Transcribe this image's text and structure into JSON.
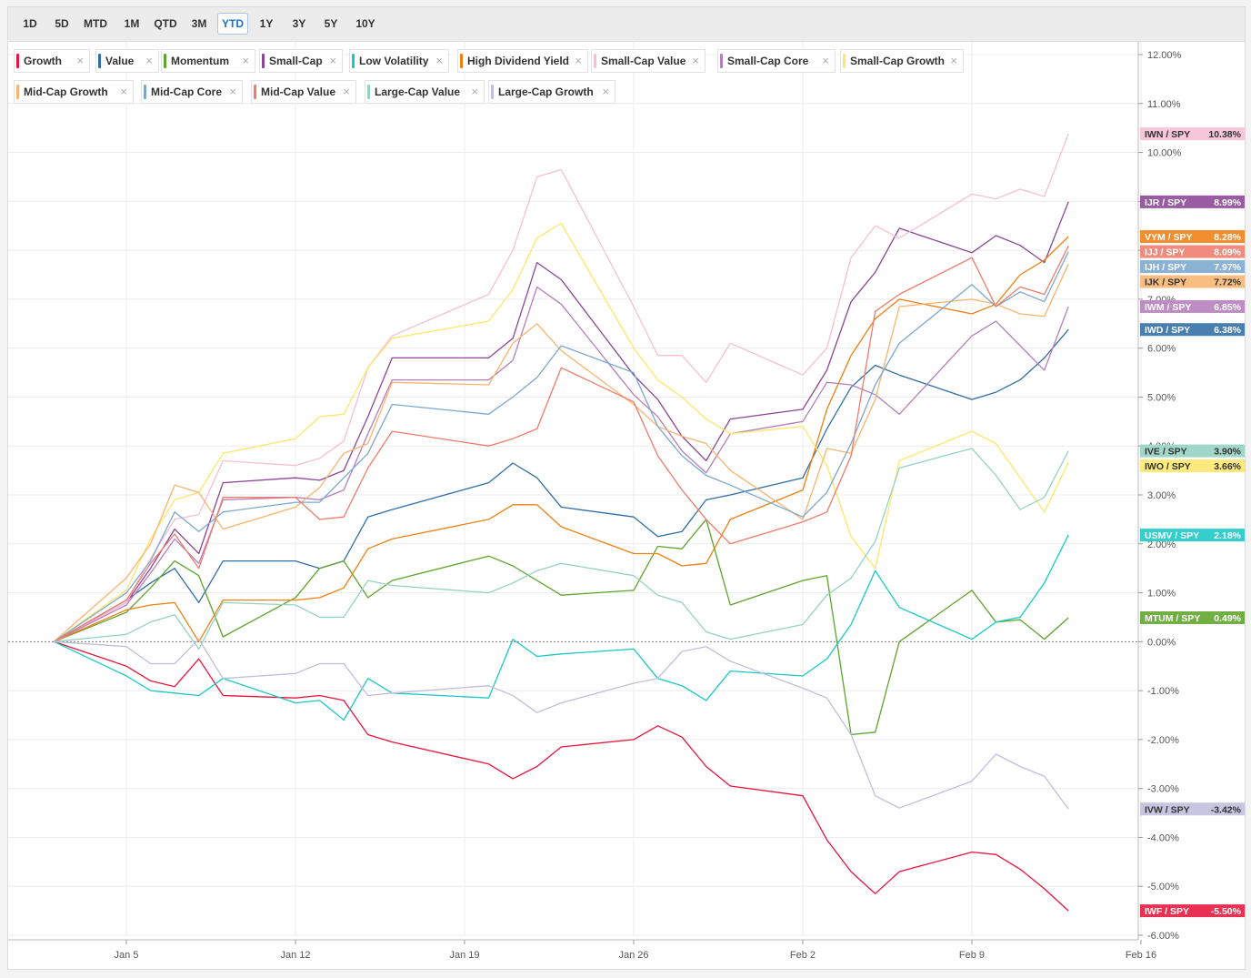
{
  "toolbar": {
    "ranges": [
      "1D",
      "5D",
      "MTD",
      "1M",
      "QTD",
      "3M",
      "YTD",
      "1Y",
      "3Y",
      "5Y",
      "10Y"
    ],
    "active": "YTD"
  },
  "chart_data": {
    "type": "line",
    "title": "",
    "xlabel": "",
    "ylabel": "",
    "x": [
      "Jan 2",
      "Jan 5",
      "Jan 6",
      "Jan 7",
      "Jan 8",
      "Jan 9",
      "Jan 12",
      "Jan 13",
      "Jan 14",
      "Jan 15",
      "Jan 16",
      "Jan 20",
      "Jan 21",
      "Jan 22",
      "Jan 23",
      "Jan 26",
      "Jan 27",
      "Jan 28",
      "Jan 29",
      "Jan 30",
      "Feb 2",
      "Feb 3",
      "Feb 4",
      "Feb 5",
      "Feb 6",
      "Feb 9",
      "Feb 10",
      "Feb 11",
      "Feb 12",
      "Feb 13"
    ],
    "x_ticks": [
      "Jan 5",
      "Jan 12",
      "Jan 19",
      "Jan 26",
      "Feb 2",
      "Feb 9",
      "Feb 16"
    ],
    "ylim": [
      -6.0,
      12.0
    ],
    "y_ticks": [
      "12.00%",
      "11.00%",
      "10.00%",
      "9.00%",
      "8.00%",
      "7.00%",
      "6.00%",
      "5.00%",
      "4.00%",
      "3.00%",
      "2.00%",
      "1.00%",
      "0.00%",
      "-1.00%",
      "-2.00%",
      "-3.00%",
      "-4.00%",
      "-5.00%",
      "-6.00%"
    ],
    "grid": true,
    "legend_position": "top-left",
    "series": [
      {
        "name": "Growth",
        "ticker": "IWF / SPY",
        "final": "-5.50%",
        "color": "#e8143c",
        "values": [
          0,
          -0.5,
          -0.8,
          -0.92,
          -0.35,
          -1.1,
          -1.15,
          -1.1,
          -1.2,
          -1.9,
          -2.05,
          -2.5,
          -2.8,
          -2.55,
          -2.15,
          -2.0,
          -1.72,
          -1.95,
          -2.55,
          -2.95,
          -3.15,
          -4.05,
          -4.7,
          -5.15,
          -4.7,
          -4.3,
          -4.35,
          -4.65,
          -5.05,
          -5.5
        ]
      },
      {
        "name": "Value",
        "ticker": "IWD / SPY",
        "final": "6.38%",
        "color": "#2f6ea5",
        "values": [
          0,
          0.85,
          1.2,
          1.5,
          0.8,
          1.65,
          1.65,
          1.5,
          1.65,
          2.55,
          2.7,
          3.25,
          3.65,
          3.35,
          2.75,
          2.55,
          2.15,
          2.25,
          2.9,
          3.0,
          3.35,
          4.35,
          5.2,
          5.65,
          5.45,
          4.95,
          5.1,
          5.35,
          5.8,
          6.38
        ]
      },
      {
        "name": "Momentum",
        "ticker": "MTUM / SPY",
        "final": "0.49%",
        "color": "#5ea42c",
        "values": [
          0,
          0.6,
          1.1,
          1.65,
          1.35,
          0.1,
          0.9,
          1.5,
          1.65,
          0.9,
          1.25,
          1.75,
          1.55,
          1.25,
          0.95,
          1.05,
          1.95,
          1.9,
          2.5,
          0.75,
          1.25,
          1.35,
          -1.9,
          -1.85,
          0.0,
          1.05,
          0.4,
          0.45,
          0.05,
          0.49
        ]
      },
      {
        "name": "Small-Cap",
        "ticker": "IJR / SPY",
        "final": "8.99%",
        "color": "#8b4596",
        "values": [
          0,
          0.8,
          1.5,
          2.3,
          1.8,
          3.25,
          3.35,
          3.3,
          3.5,
          4.6,
          5.8,
          5.8,
          6.2,
          7.75,
          7.4,
          5.45,
          4.95,
          4.2,
          3.7,
          4.55,
          4.75,
          5.55,
          6.95,
          7.55,
          8.45,
          7.95,
          8.3,
          8.1,
          7.75,
          8.99
        ]
      },
      {
        "name": "Low Volatility",
        "ticker": "USMV / SPY",
        "final": "2.18%",
        "color": "#19c9c6",
        "values": [
          0,
          -0.7,
          -1.0,
          -1.05,
          -1.1,
          -0.75,
          -1.25,
          -1.2,
          -1.6,
          -0.75,
          -1.05,
          -1.15,
          0.05,
          -0.3,
          -0.25,
          -0.15,
          -0.75,
          -0.9,
          -1.2,
          -0.6,
          -0.7,
          -0.35,
          0.35,
          1.45,
          0.7,
          0.05,
          0.4,
          0.5,
          1.2,
          2.18
        ]
      },
      {
        "name": "High Dividend Yield",
        "ticker": "VYM / SPY",
        "final": "8.28%",
        "color": "#ef8012",
        "values": [
          0,
          0.65,
          0.75,
          0.8,
          0.0,
          0.85,
          0.85,
          0.9,
          1.1,
          1.9,
          2.1,
          2.5,
          2.8,
          2.8,
          2.35,
          1.8,
          1.8,
          1.55,
          1.6,
          2.5,
          3.1,
          4.75,
          5.85,
          6.6,
          7.0,
          6.7,
          6.9,
          7.5,
          7.8,
          8.28
        ]
      },
      {
        "name": "Small-Cap Value",
        "ticker": "IWN / SPY",
        "final": "10.38%",
        "color": "#f7bfd4",
        "values": [
          0,
          0.8,
          1.7,
          2.5,
          2.6,
          3.7,
          3.6,
          3.75,
          4.1,
          5.6,
          6.25,
          7.1,
          8.0,
          9.5,
          9.65,
          6.85,
          5.85,
          5.85,
          5.3,
          6.1,
          5.45,
          6.0,
          7.85,
          8.5,
          8.25,
          9.15,
          9.05,
          9.25,
          9.1,
          10.38
        ]
      },
      {
        "name": "Small-Cap Core",
        "ticker": "IWM / SPY",
        "final": "6.85%",
        "color": "#b67ebb",
        "values": [
          0,
          0.75,
          1.4,
          2.1,
          1.6,
          2.9,
          2.95,
          2.9,
          3.1,
          4.25,
          5.35,
          5.35,
          5.75,
          7.25,
          6.9,
          5.05,
          4.6,
          3.9,
          3.45,
          4.25,
          4.5,
          5.3,
          5.25,
          5.05,
          4.65,
          6.25,
          6.55,
          6.05,
          5.55,
          6.85
        ]
      },
      {
        "name": "Small-Cap Growth",
        "ticker": "IWO / SPY",
        "final": "3.66%",
        "color": "#fde66a",
        "values": [
          0,
          1.05,
          2.1,
          2.9,
          3.05,
          3.85,
          4.15,
          4.6,
          4.65,
          5.6,
          6.2,
          6.55,
          7.2,
          8.25,
          8.55,
          6.0,
          5.35,
          5.0,
          4.55,
          4.25,
          4.4,
          3.6,
          2.15,
          1.5,
          3.7,
          4.3,
          4.05,
          3.35,
          2.65,
          3.66
        ]
      },
      {
        "name": "Mid-Cap Growth",
        "ticker": "IJK / SPY",
        "final": "7.72%",
        "color": "#f8b470",
        "values": [
          0,
          1.3,
          2.0,
          3.2,
          3.05,
          2.3,
          2.75,
          3.15,
          3.85,
          4.05,
          5.3,
          5.25,
          6.1,
          6.5,
          5.95,
          4.85,
          4.4,
          4.2,
          4.05,
          3.5,
          2.5,
          3.95,
          3.85,
          4.95,
          6.85,
          7.0,
          6.9,
          6.7,
          6.65,
          7.72
        ]
      },
      {
        "name": "Mid-Cap Core",
        "ticker": "IJH / SPY",
        "final": "7.97%",
        "color": "#7ca7cf",
        "values": [
          0,
          1.0,
          1.65,
          2.65,
          2.25,
          2.65,
          2.85,
          2.85,
          3.35,
          3.85,
          4.85,
          4.65,
          5.0,
          5.4,
          6.05,
          5.5,
          4.4,
          3.8,
          3.4,
          3.2,
          2.55,
          3.05,
          4.05,
          5.25,
          6.1,
          7.3,
          6.85,
          7.15,
          6.95,
          7.97
        ]
      },
      {
        "name": "Mid-Cap Value",
        "ticker": "IJJ / SPY",
        "final": "8.09%",
        "color": "#ef7b6b",
        "values": [
          0,
          0.85,
          1.6,
          2.2,
          1.5,
          2.95,
          2.95,
          2.5,
          2.55,
          3.55,
          4.3,
          4.0,
          4.15,
          4.35,
          5.6,
          4.9,
          3.8,
          3.1,
          2.5,
          2.0,
          2.45,
          2.65,
          3.8,
          6.75,
          7.1,
          7.85,
          6.85,
          7.25,
          7.1,
          8.09
        ]
      },
      {
        "name": "Large-Cap Value",
        "ticker": "IVE / SPY",
        "final": "3.90%",
        "color": "#95d2c3",
        "values": [
          0,
          0.15,
          0.4,
          0.55,
          -0.15,
          0.8,
          0.75,
          0.5,
          0.5,
          1.25,
          1.15,
          1.0,
          1.2,
          1.45,
          1.6,
          1.35,
          0.95,
          0.8,
          0.2,
          0.05,
          0.35,
          0.95,
          1.3,
          2.05,
          3.55,
          3.95,
          3.4,
          2.7,
          2.95,
          3.9
        ]
      },
      {
        "name": "Large-Cap Growth",
        "ticker": "IVW / SPY",
        "final": "-3.42%",
        "color": "#c0bedb",
        "values": [
          0,
          -0.1,
          -0.45,
          -0.45,
          0.05,
          -0.75,
          -0.65,
          -0.45,
          -0.45,
          -1.1,
          -1.05,
          -0.9,
          -1.1,
          -1.45,
          -1.25,
          -0.85,
          -0.75,
          -0.2,
          -0.1,
          -0.4,
          -0.95,
          -1.15,
          -1.9,
          -3.15,
          -3.4,
          -2.85,
          -2.3,
          -2.55,
          -2.75,
          -3.42
        ]
      }
    ]
  }
}
